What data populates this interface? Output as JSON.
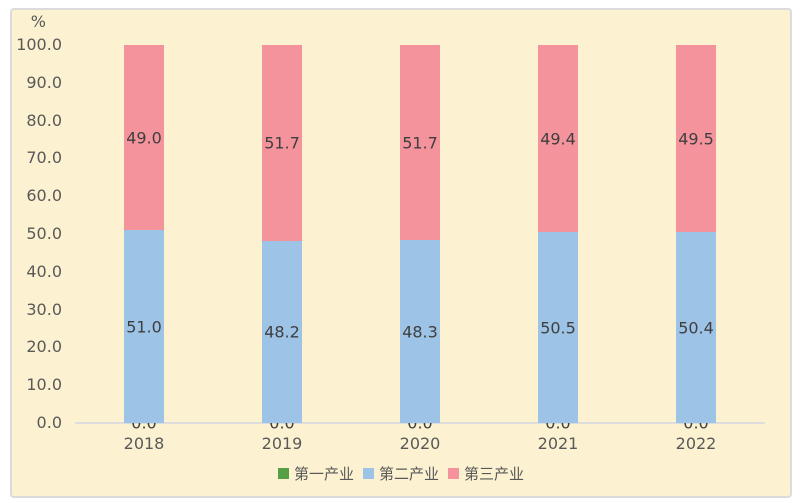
{
  "chart": {
    "unit_label": "%",
    "background_color": "#FCF2D1",
    "panel_border_color": "#DBDBDB",
    "axis_line_color": "#DDDDDD",
    "data_label_color": "#3F3F3F",
    "tick_label_color": "#595959"
  },
  "chart_data": {
    "type": "bar",
    "stacked": true,
    "title": "",
    "ylabel": "%",
    "xlabel": "",
    "categories": [
      "2018",
      "2019",
      "2020",
      "2021",
      "2022"
    ],
    "series": [
      {
        "name": "第一产业",
        "color": "#55A046",
        "values": [
          0.0,
          0.0,
          0.0,
          0.0,
          0.0
        ]
      },
      {
        "name": "第二产业",
        "color": "#9DC3E6",
        "values": [
          51.0,
          48.2,
          48.3,
          50.5,
          50.4
        ]
      },
      {
        "name": "第三产业",
        "color": "#F5939C",
        "values": [
          49.0,
          51.7,
          51.7,
          49.4,
          49.5
        ]
      }
    ],
    "ylim": [
      0,
      100
    ],
    "yticks": [
      0,
      10,
      20,
      30,
      40,
      50,
      60,
      70,
      80,
      90,
      100
    ],
    "tick_format": "one_decimal",
    "data_labels": "one_decimal",
    "grid": false,
    "legend_position": "bottom"
  }
}
